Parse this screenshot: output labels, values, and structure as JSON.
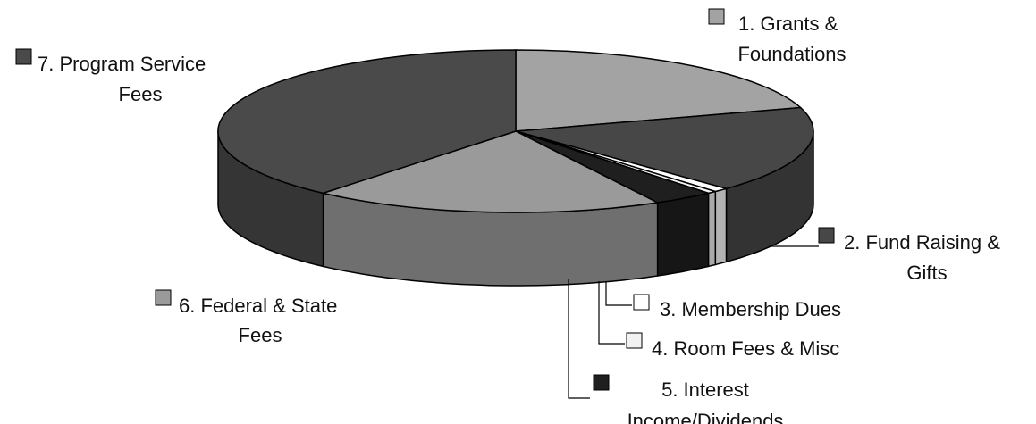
{
  "chart_data": {
    "type": "pie",
    "title": "",
    "style": "3d-exploded-none",
    "slices": [
      {
        "id": 1,
        "label_lines": [
          "1.  Grants &",
          "Foundations"
        ],
        "value": 20.3,
        "color": "#a3a3a3"
      },
      {
        "id": 2,
        "label_lines": [
          "2.  Fund Raising &",
          "Gifts"
        ],
        "value": 17.2,
        "color": "#474747"
      },
      {
        "id": 3,
        "label_lines": [
          "3.  Membership Dues"
        ],
        "value": 0.8,
        "color": "#ffffff"
      },
      {
        "id": 4,
        "label_lines": [
          "4.  Room Fees & Misc"
        ],
        "value": 0.5,
        "color": "#f2f2f2"
      },
      {
        "id": 5,
        "label_lines": [
          "5.  Interest",
          "Income/Dividends"
        ],
        "value": 3.3,
        "color": "#1f1f1f"
      },
      {
        "id": 6,
        "label_lines": [
          "6.  Federal & State",
          "Fees"
        ],
        "value": 19.1,
        "color": "#9a9a9a"
      },
      {
        "id": 7,
        "label_lines": [
          "7.  Program Service",
          "Fees"
        ],
        "value": 38.8,
        "color": "#4a4a4a"
      }
    ],
    "legend": "labels-around-pie"
  }
}
